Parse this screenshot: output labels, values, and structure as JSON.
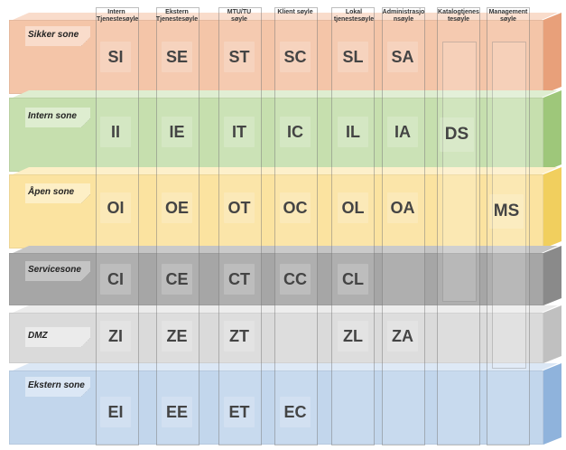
{
  "columns": [
    {
      "label": "Intern Tjenestesøyle"
    },
    {
      "label": "Ekstern Tjenestesøyle"
    },
    {
      "label": "MTU/TU søyle"
    },
    {
      "label": "Klient søyle"
    },
    {
      "label": "Lokal tjenestesøyle"
    },
    {
      "label": "Administrasjo nsøyle"
    },
    {
      "label": "Katalogtjenes tesøyle"
    },
    {
      "label": "Management søyle"
    }
  ],
  "zones": [
    {
      "name": "Sikker sone",
      "color": "#f4c5a8",
      "top_color": "#f9dccb",
      "side_color": "#e8a07a",
      "cells": [
        "SI",
        "SE",
        "ST",
        "SC",
        "SL",
        "SA"
      ]
    },
    {
      "name": "Intern sone",
      "color": "#c6dfae",
      "top_color": "#deedd0",
      "side_color": "#9ec77a",
      "cells": [
        "II",
        "IE",
        "IT",
        "IC",
        "IL",
        "IA",
        "DS"
      ]
    },
    {
      "name": "Åpen sone",
      "color": "#fbe3a0",
      "top_color": "#fdefc6",
      "side_color": "#f1cf5e",
      "cells": [
        "OI",
        "OE",
        "OT",
        "OC",
        "OL",
        "OA",
        "MS"
      ]
    },
    {
      "name": "Servicesone",
      "color": "#a6a6a6",
      "top_color": "#c4c4c4",
      "side_color": "#8a8a8a",
      "cells": [
        "CI",
        "CE",
        "CT",
        "CC",
        "CL"
      ]
    },
    {
      "name": "DMZ",
      "color": "#dadada",
      "top_color": "#ebebeb",
      "side_color": "#c0c0c0",
      "cells": [
        "ZI",
        "ZE",
        "ZT",
        "ZL",
        "ZA"
      ]
    },
    {
      "name": "Ekstern sone",
      "color": "#c2d6ec",
      "top_color": "#dbe7f5",
      "side_color": "#8fb3dc",
      "cells": [
        "EI",
        "EE",
        "ET",
        "EC"
      ]
    }
  ]
}
